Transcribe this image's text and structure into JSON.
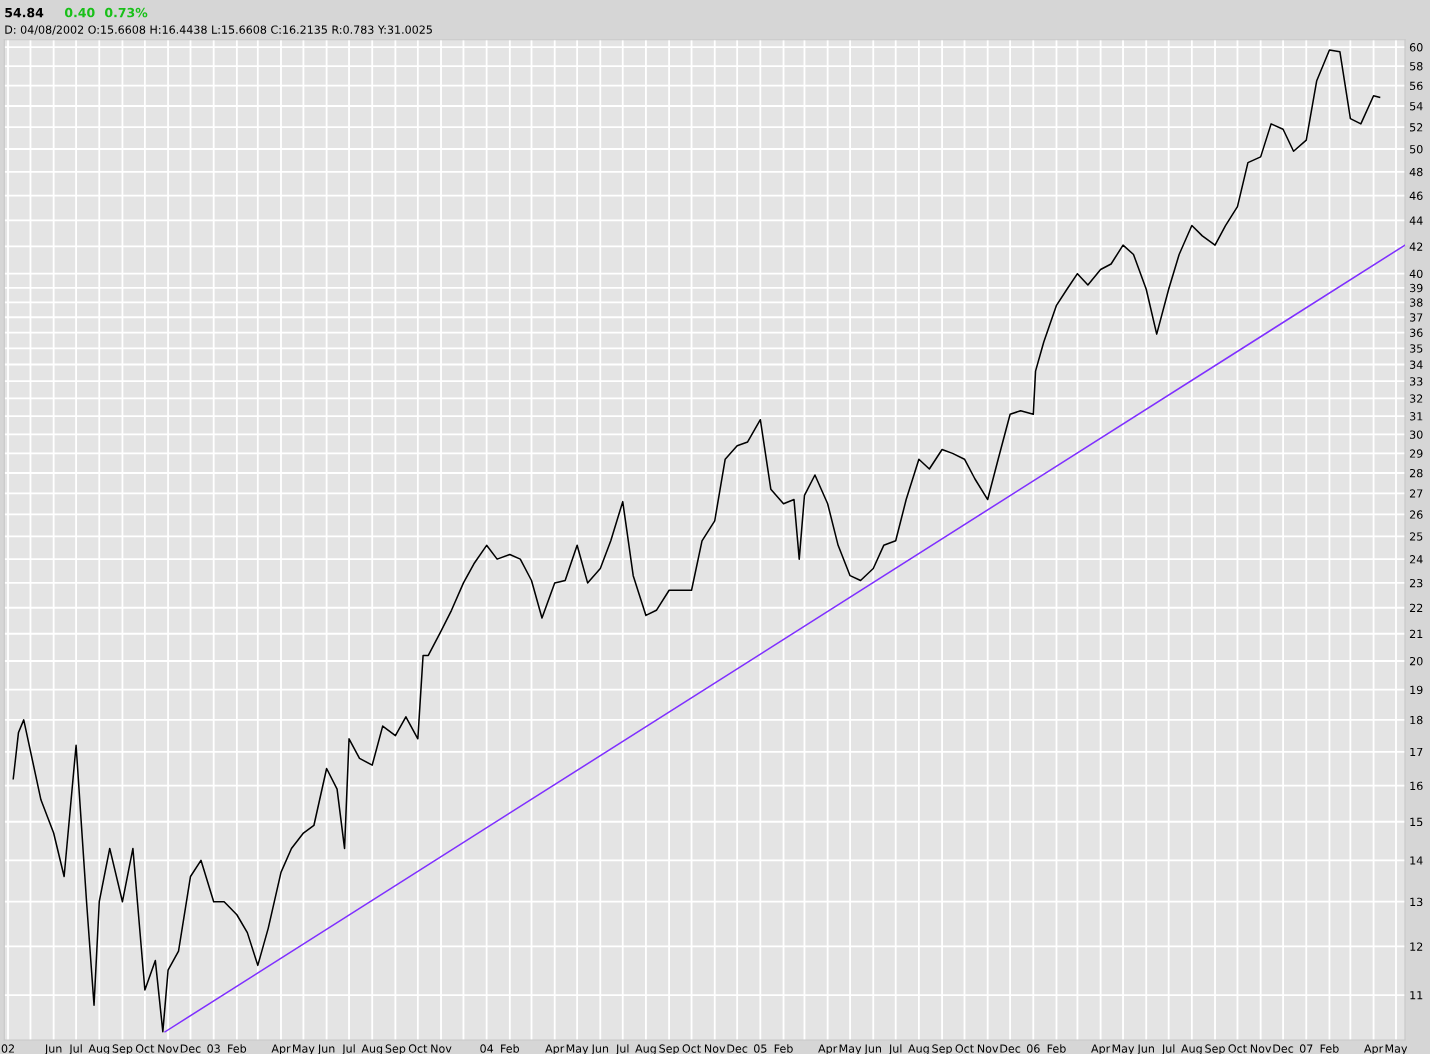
{
  "chart_data": {
    "type": "line",
    "title": "54.84",
    "subtitle": "D: 04/08/2002 O:15.6608 H:16.4438 L:15.6608 C:16.2135 R:0.783 Y:31.0025",
    "annotations": [
      "0.40",
      "0.73%"
    ],
    "log": "y",
    "grid": true,
    "legend": false,
    "marker": "none",
    "line_style": "solid",
    "xlim": [
      "2002-03-27",
      "2007-05-13"
    ],
    "ylim": [
      10.15,
      60.8
    ],
    "yticks": [
      11,
      12,
      13,
      14,
      15,
      16,
      17,
      18,
      19,
      20,
      21,
      22,
      23,
      24,
      25,
      26,
      27,
      28,
      29,
      30,
      31,
      32,
      33,
      34,
      35,
      36,
      37,
      38,
      39,
      40,
      42,
      44,
      46,
      48,
      50,
      52,
      54,
      56,
      58,
      60
    ],
    "xticks": [
      {
        "value": "2002-04-01",
        "label": "02"
      },
      {
        "value": "2002-05-01",
        "label": null
      },
      {
        "value": "2002-06-01",
        "label": "Jun"
      },
      {
        "value": "2002-07-01",
        "label": "Jul"
      },
      {
        "value": "2002-08-01",
        "label": "Aug"
      },
      {
        "value": "2002-09-01",
        "label": "Sep"
      },
      {
        "value": "2002-10-01",
        "label": "Oct"
      },
      {
        "value": "2002-11-01",
        "label": "Nov"
      },
      {
        "value": "2002-12-01",
        "label": "Dec"
      },
      {
        "value": "2003-01-01",
        "label": "03"
      },
      {
        "value": "2003-02-01",
        "label": "Feb"
      },
      {
        "value": "2003-03-01",
        "label": null
      },
      {
        "value": "2003-04-01",
        "label": "Apr"
      },
      {
        "value": "2003-05-01",
        "label": "May"
      },
      {
        "value": "2003-06-01",
        "label": "Jun"
      },
      {
        "value": "2003-07-01",
        "label": "Jul"
      },
      {
        "value": "2003-08-01",
        "label": "Aug"
      },
      {
        "value": "2003-09-01",
        "label": "Sep"
      },
      {
        "value": "2003-10-01",
        "label": "Oct"
      },
      {
        "value": "2003-11-01",
        "label": "Nov"
      },
      {
        "value": "2003-12-01",
        "label": null
      },
      {
        "value": "2004-01-01",
        "label": "04"
      },
      {
        "value": "2004-02-01",
        "label": "Feb"
      },
      {
        "value": "2004-03-01",
        "label": null
      },
      {
        "value": "2004-04-01",
        "label": "Apr"
      },
      {
        "value": "2004-05-01",
        "label": "May"
      },
      {
        "value": "2004-06-01",
        "label": "Jun"
      },
      {
        "value": "2004-07-01",
        "label": "Jul"
      },
      {
        "value": "2004-08-01",
        "label": "Aug"
      },
      {
        "value": "2004-09-01",
        "label": "Sep"
      },
      {
        "value": "2004-10-01",
        "label": "Oct"
      },
      {
        "value": "2004-11-01",
        "label": "Nov"
      },
      {
        "value": "2004-12-01",
        "label": "Dec"
      },
      {
        "value": "2005-01-01",
        "label": "05"
      },
      {
        "value": "2005-02-01",
        "label": "Feb"
      },
      {
        "value": "2005-03-01",
        "label": null
      },
      {
        "value": "2005-04-01",
        "label": "Apr"
      },
      {
        "value": "2005-05-01",
        "label": "May"
      },
      {
        "value": "2005-06-01",
        "label": "Jun"
      },
      {
        "value": "2005-07-01",
        "label": "Jul"
      },
      {
        "value": "2005-08-01",
        "label": "Aug"
      },
      {
        "value": "2005-09-01",
        "label": "Sep"
      },
      {
        "value": "2005-10-01",
        "label": "Oct"
      },
      {
        "value": "2005-11-01",
        "label": "Nov"
      },
      {
        "value": "2005-12-01",
        "label": "Dec"
      },
      {
        "value": "2006-01-01",
        "label": "06"
      },
      {
        "value": "2006-02-01",
        "label": "Feb"
      },
      {
        "value": "2006-03-01",
        "label": null
      },
      {
        "value": "2006-04-01",
        "label": "Apr"
      },
      {
        "value": "2006-05-01",
        "label": "May"
      },
      {
        "value": "2006-06-01",
        "label": "Jun"
      },
      {
        "value": "2006-07-01",
        "label": "Jul"
      },
      {
        "value": "2006-08-01",
        "label": "Aug"
      },
      {
        "value": "2006-09-01",
        "label": "Sep"
      },
      {
        "value": "2006-10-01",
        "label": "Oct"
      },
      {
        "value": "2006-11-01",
        "label": "Nov"
      },
      {
        "value": "2006-12-01",
        "label": "Dec"
      },
      {
        "value": "2007-01-01",
        "label": "07"
      },
      {
        "value": "2007-02-01",
        "label": "Feb"
      },
      {
        "value": "2007-03-01",
        "label": null
      },
      {
        "value": "2007-04-01",
        "label": "Apr"
      },
      {
        "value": "2007-05-01",
        "label": "May"
      }
    ],
    "series": [
      {
        "color": "#000000",
        "x": [
          "2002-04-08",
          "2002-04-15",
          "2002-04-22",
          "2002-05-15",
          "2002-06-01",
          "2002-06-15",
          "2002-07-01",
          "2002-07-15",
          "2002-07-25",
          "2002-08-01",
          "2002-08-15",
          "2002-09-01",
          "2002-09-15",
          "2002-10-01",
          "2002-10-15",
          "2002-10-25",
          "2002-11-01",
          "2002-11-15",
          "2002-12-01",
          "2002-12-15",
          "2003-01-01",
          "2003-01-15",
          "2003-02-01",
          "2003-02-15",
          "2003-03-01",
          "2003-03-15",
          "2003-04-01",
          "2003-04-15",
          "2003-05-01",
          "2003-05-15",
          "2003-06-01",
          "2003-06-15",
          "2003-06-25",
          "2003-07-01",
          "2003-07-15",
          "2003-08-01",
          "2003-08-15",
          "2003-09-01",
          "2003-09-15",
          "2003-10-01",
          "2003-10-08",
          "2003-10-15",
          "2003-11-01",
          "2003-11-15",
          "2003-12-01",
          "2003-12-15",
          "2004-01-01",
          "2004-01-15",
          "2004-02-01",
          "2004-02-15",
          "2004-03-01",
          "2004-03-15",
          "2004-04-01",
          "2004-04-15",
          "2004-05-01",
          "2004-05-15",
          "2004-06-01",
          "2004-06-15",
          "2004-07-01",
          "2004-07-15",
          "2004-08-01",
          "2004-08-15",
          "2004-09-01",
          "2004-09-15",
          "2004-10-01",
          "2004-10-15",
          "2004-11-01",
          "2004-11-15",
          "2004-12-01",
          "2004-12-15",
          "2005-01-01",
          "2005-01-15",
          "2005-02-01",
          "2005-02-15",
          "2005-02-22",
          "2005-03-01",
          "2005-03-15",
          "2005-04-01",
          "2005-04-15",
          "2005-05-01",
          "2005-05-15",
          "2005-06-01",
          "2005-06-15",
          "2005-07-01",
          "2005-07-15",
          "2005-08-01",
          "2005-08-15",
          "2005-09-01",
          "2005-09-15",
          "2005-10-01",
          "2005-10-15",
          "2005-11-01",
          "2005-11-15",
          "2005-12-01",
          "2005-12-15",
          "2006-01-01",
          "2006-01-04",
          "2006-01-15",
          "2006-02-01",
          "2006-02-15",
          "2006-03-01",
          "2006-03-15",
          "2006-04-01",
          "2006-04-15",
          "2006-05-01",
          "2006-05-15",
          "2006-06-01",
          "2006-06-15",
          "2006-07-01",
          "2006-07-15",
          "2006-08-01",
          "2006-08-15",
          "2006-09-01",
          "2006-09-15",
          "2006-10-01",
          "2006-10-15",
          "2006-11-01",
          "2006-11-15",
          "2006-12-01",
          "2006-12-15",
          "2007-01-01",
          "2007-01-15",
          "2007-02-01",
          "2007-02-15",
          "2007-03-01",
          "2007-03-15",
          "2007-04-01",
          "2007-04-09"
        ],
        "values": [
          16.2,
          17.6,
          18.0,
          15.6,
          14.7,
          13.6,
          17.2,
          13.0,
          10.8,
          13.0,
          14.3,
          13.0,
          14.3,
          11.1,
          11.7,
          10.3,
          11.5,
          11.9,
          13.6,
          14.0,
          13.0,
          13.0,
          12.7,
          12.3,
          11.6,
          12.4,
          13.7,
          14.3,
          14.7,
          14.9,
          16.5,
          15.9,
          14.3,
          17.4,
          16.8,
          16.6,
          17.8,
          17.5,
          18.1,
          17.4,
          20.2,
          20.2,
          21.1,
          21.9,
          23.0,
          23.8,
          24.6,
          24.0,
          24.2,
          24.0,
          23.1,
          21.6,
          23.0,
          23.1,
          24.6,
          23.0,
          23.6,
          24.8,
          26.6,
          23.3,
          21.7,
          21.9,
          22.7,
          22.7,
          22.7,
          24.8,
          25.7,
          28.7,
          29.4,
          29.6,
          30.8,
          27.2,
          26.5,
          26.7,
          24.0,
          26.9,
          27.9,
          26.5,
          24.6,
          23.3,
          23.1,
          23.6,
          24.6,
          24.8,
          26.7,
          28.7,
          28.2,
          29.2,
          29.0,
          28.7,
          27.7,
          26.7,
          28.7,
          31.1,
          31.3,
          31.1,
          33.6,
          35.4,
          37.8,
          38.9,
          40.0,
          39.2,
          40.3,
          40.7,
          42.1,
          41.4,
          38.9,
          35.9,
          38.9,
          41.4,
          43.6,
          42.8,
          42.1,
          43.6,
          45.1,
          48.8,
          49.3,
          52.3,
          51.8,
          49.8,
          50.8,
          56.5,
          59.7,
          59.5,
          52.8,
          52.3,
          55.0,
          54.84
        ]
      },
      {
        "color": "#7f2fff",
        "x": [
          "2002-10-28",
          "2007-05-13"
        ],
        "values": [
          10.3,
          42.1
        ]
      }
    ]
  }
}
